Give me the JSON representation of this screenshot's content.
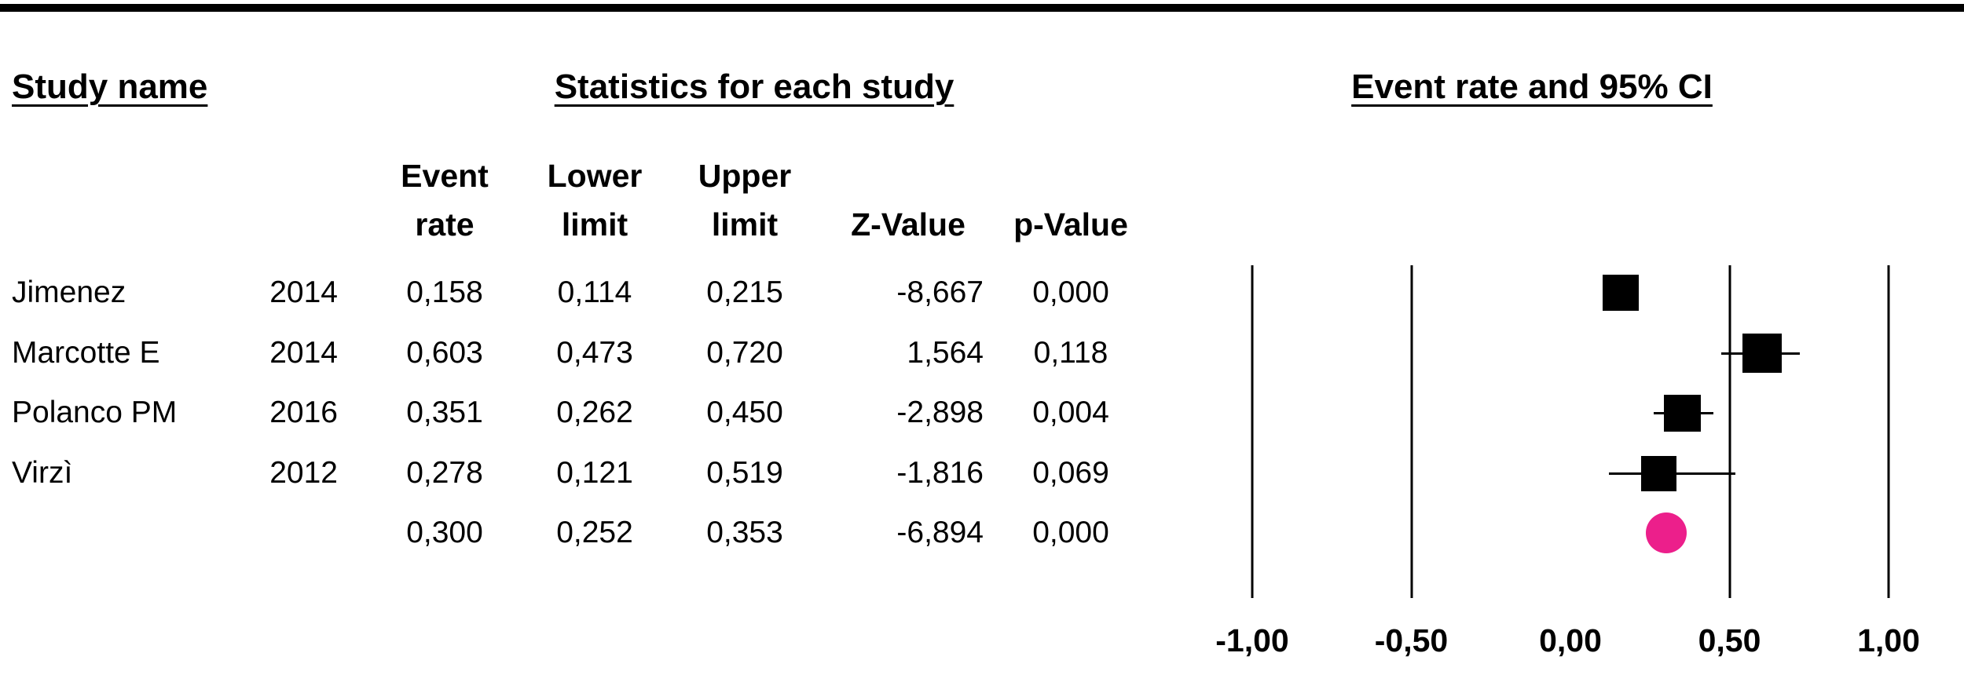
{
  "headers": {
    "study_name": "Study name",
    "statistics": "Statistics for each study",
    "plot": "Event rate and 95% CI"
  },
  "columns": {
    "event_rate": [
      "Event",
      "rate"
    ],
    "lower_limit": [
      "Lower",
      "limit"
    ],
    "upper_limit": [
      "Upper",
      "limit"
    ],
    "z_value": "Z-Value",
    "p_value": "p-Value"
  },
  "rows": [
    {
      "name": "Jimenez",
      "year": "2014",
      "event_rate": "0,158",
      "lower_limit": "0,114",
      "upper_limit": "0,215",
      "z_value": "-8,667",
      "p_value": "0,000"
    },
    {
      "name": "Marcotte E",
      "year": "2014",
      "event_rate": "0,603",
      "lower_limit": "0,473",
      "upper_limit": "0,720",
      "z_value": "1,564",
      "p_value": "0,118"
    },
    {
      "name": "Polanco PM",
      "year": "2016",
      "event_rate": "0,351",
      "lower_limit": "0,262",
      "upper_limit": "0,450",
      "z_value": "-2,898",
      "p_value": "0,004"
    },
    {
      "name": "Virzì",
      "year": "2012",
      "event_rate": "0,278",
      "lower_limit": "0,121",
      "upper_limit": "0,519",
      "z_value": "-1,816",
      "p_value": "0,069"
    },
    {
      "name": "",
      "year": "",
      "event_rate": "0,300",
      "lower_limit": "0,252",
      "upper_limit": "0,353",
      "z_value": "-6,894",
      "p_value": "0,000"
    }
  ],
  "colors": {
    "marker": "#000000",
    "summary_marker": "#ec1f8b",
    "rule": "#000000",
    "background": "#ffffff"
  },
  "chart_data": {
    "type": "forest",
    "title": "Event rate and 95% CI",
    "effect_measure": "Event rate",
    "x_range": [
      -1.0,
      1.0
    ],
    "x_ticks": [
      -1.0,
      -0.5,
      0.0,
      0.5,
      1.0
    ],
    "x_tick_labels": [
      "-1,00",
      "-0,50",
      "0,00",
      "0,50",
      "1,00"
    ],
    "gridlines": [
      -1.0,
      -0.5,
      0.5,
      1.0
    ],
    "studies": [
      {
        "name": "Jimenez",
        "year": "2014",
        "event_rate": 0.158,
        "lower_limit": 0.114,
        "upper_limit": 0.215,
        "z_value": -8.667,
        "p_value": 0.0,
        "marker": "square",
        "marker_size": 46
      },
      {
        "name": "Marcotte E",
        "year": "2014",
        "event_rate": 0.603,
        "lower_limit": 0.473,
        "upper_limit": 0.72,
        "z_value": 1.564,
        "p_value": 0.118,
        "marker": "square",
        "marker_size": 50
      },
      {
        "name": "Polanco PM",
        "year": "2016",
        "event_rate": 0.351,
        "lower_limit": 0.262,
        "upper_limit": 0.45,
        "z_value": -2.898,
        "p_value": 0.004,
        "marker": "square",
        "marker_size": 47
      },
      {
        "name": "Virzì",
        "year": "2012",
        "event_rate": 0.278,
        "lower_limit": 0.121,
        "upper_limit": 0.519,
        "z_value": -1.816,
        "p_value": 0.069,
        "marker": "square",
        "marker_size": 45
      }
    ],
    "summary": {
      "name": "",
      "event_rate": 0.3,
      "lower_limit": 0.252,
      "upper_limit": 0.353,
      "z_value": -6.894,
      "p_value": 0.0,
      "marker": "circle",
      "marker_size": 52
    }
  }
}
